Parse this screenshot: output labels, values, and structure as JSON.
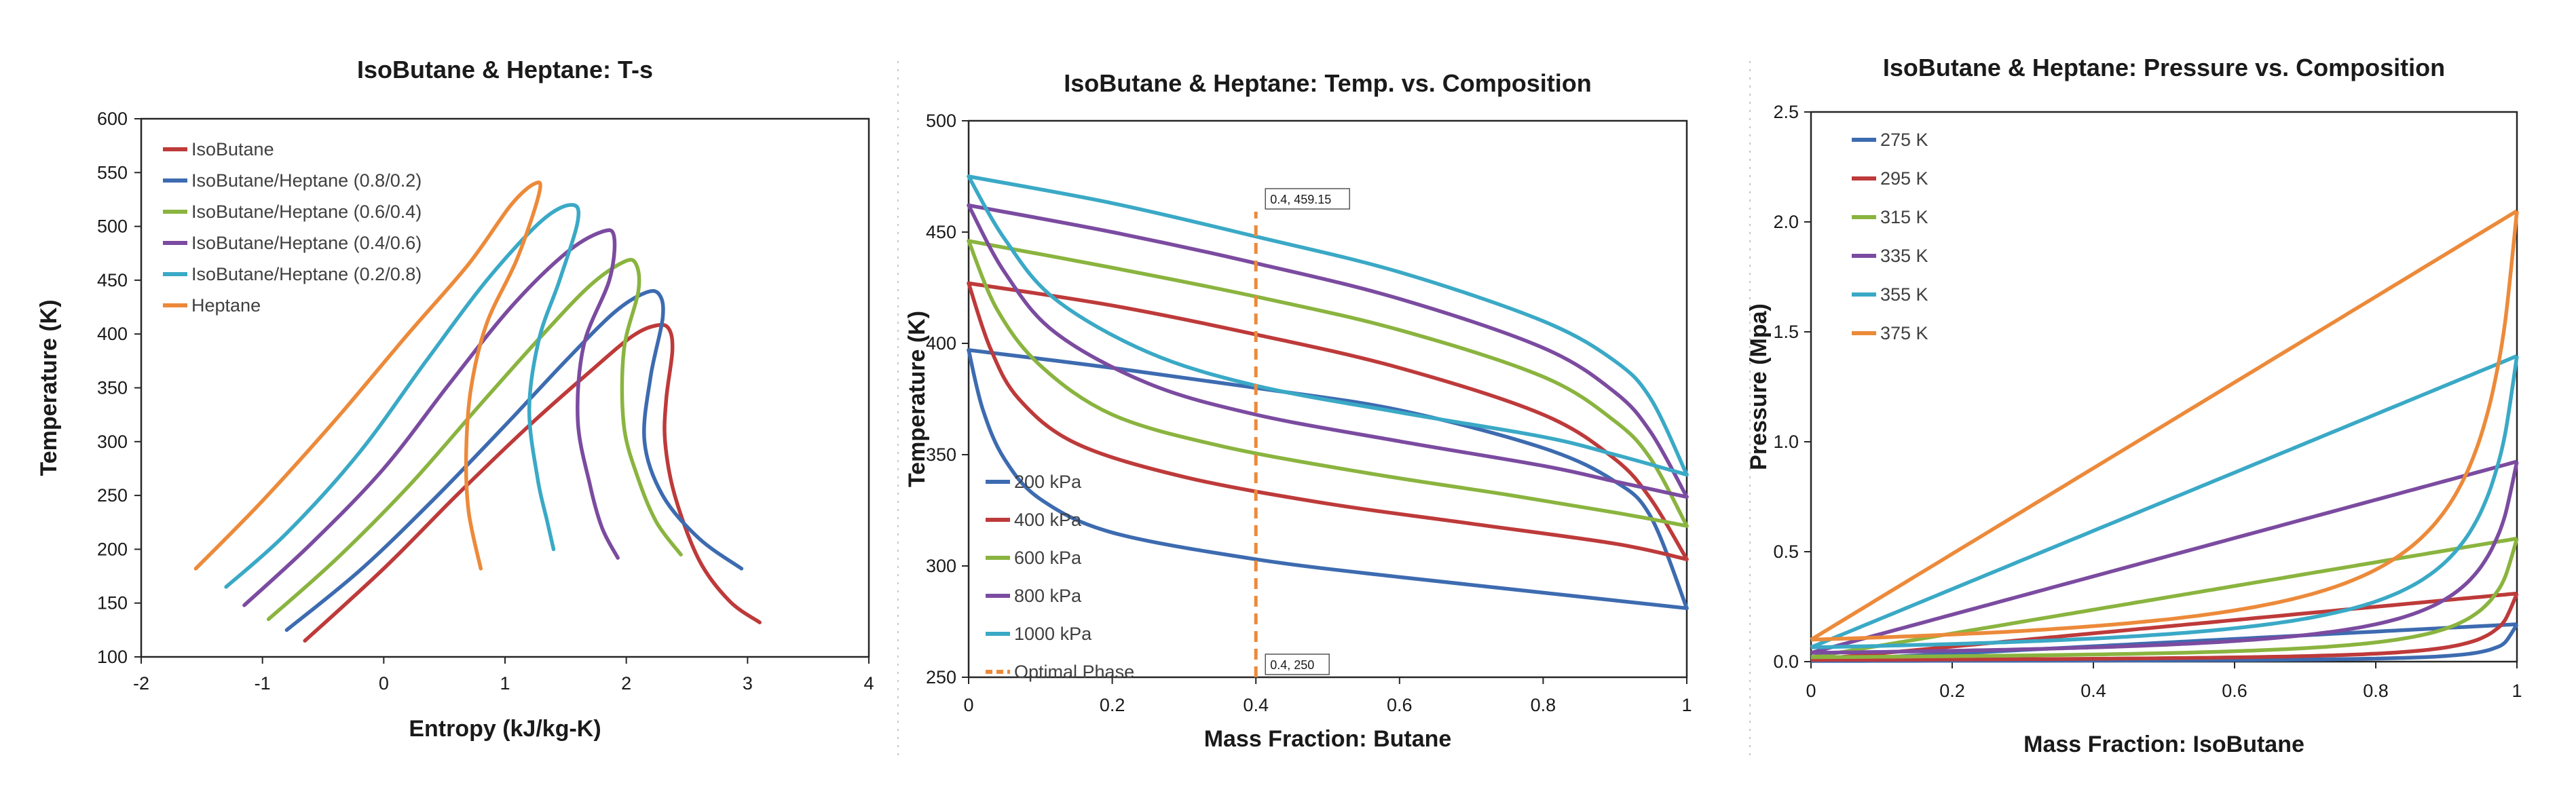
{
  "chart_data": [
    {
      "id": "ts",
      "type": "line",
      "title": "IsoButane & Heptane: T-s",
      "xlabel": "Entropy (kJ/kg-K)",
      "ylabel": "Temperature (K)",
      "xlim": [
        -2,
        4
      ],
      "ylim": [
        100,
        600
      ],
      "xticks": [
        -2,
        -1,
        0,
        1,
        2,
        3,
        4
      ],
      "yticks": [
        100,
        150,
        200,
        250,
        300,
        350,
        400,
        450,
        500,
        550,
        600
      ],
      "legend_position": "top-left",
      "series": [
        {
          "name": "IsoButane",
          "color": "#be3a3a",
          "points": [
            [
              -0.65,
              115
            ],
            [
              0.0,
              182
            ],
            [
              0.6,
              250
            ],
            [
              1.2,
              315
            ],
            [
              1.7,
              365
            ],
            [
              2.05,
              398
            ],
            [
              2.25,
              408
            ],
            [
              2.35,
              405
            ],
            [
              2.38,
              385
            ],
            [
              2.33,
              340
            ],
            [
              2.32,
              300
            ],
            [
              2.4,
              250
            ],
            [
              2.6,
              190
            ],
            [
              2.85,
              152
            ],
            [
              3.1,
              132
            ]
          ]
        },
        {
          "name": "IsoButane/Heptane (0.8/0.2)",
          "color": "#3d6bb0",
          "points": [
            [
              -0.8,
              125
            ],
            [
              -0.2,
              180
            ],
            [
              0.4,
              245
            ],
            [
              1.0,
              315
            ],
            [
              1.5,
              375
            ],
            [
              1.9,
              420
            ],
            [
              2.15,
              438
            ],
            [
              2.27,
              437
            ],
            [
              2.3,
              415
            ],
            [
              2.2,
              360
            ],
            [
              2.15,
              300
            ],
            [
              2.3,
              250
            ],
            [
              2.6,
              210
            ],
            [
              2.95,
              182
            ]
          ]
        },
        {
          "name": "IsoButane/Heptane (0.6/0.4)",
          "color": "#8ab43f",
          "points": [
            [
              -0.95,
              135
            ],
            [
              -0.4,
              190
            ],
            [
              0.2,
              258
            ],
            [
              0.8,
              335
            ],
            [
              1.3,
              398
            ],
            [
              1.7,
              445
            ],
            [
              1.98,
              467
            ],
            [
              2.08,
              465
            ],
            [
              2.1,
              440
            ],
            [
              1.98,
              385
            ],
            [
              1.98,
              315
            ],
            [
              2.1,
              265
            ],
            [
              2.25,
              225
            ],
            [
              2.45,
              195
            ]
          ]
        },
        {
          "name": "IsoButane/Heptane (0.4/0.6)",
          "color": "#7b4ba0",
          "points": [
            [
              -1.15,
              148
            ],
            [
              -0.6,
              205
            ],
            [
              0.0,
              275
            ],
            [
              0.55,
              355
            ],
            [
              1.05,
              425
            ],
            [
              1.5,
              475
            ],
            [
              1.8,
              495
            ],
            [
              1.9,
              490
            ],
            [
              1.86,
              450
            ],
            [
              1.65,
              390
            ],
            [
              1.6,
              320
            ],
            [
              1.7,
              260
            ],
            [
              1.8,
              220
            ],
            [
              1.93,
              192
            ]
          ]
        },
        {
          "name": "IsoButane/Heptane (0.2/0.8)",
          "color": "#3aa9c6",
          "points": [
            [
              -1.3,
              165
            ],
            [
              -0.8,
              215
            ],
            [
              -0.2,
              290
            ],
            [
              0.35,
              375
            ],
            [
              0.85,
              450
            ],
            [
              1.3,
              505
            ],
            [
              1.55,
              520
            ],
            [
              1.6,
              505
            ],
            [
              1.45,
              450
            ],
            [
              1.28,
              395
            ],
            [
              1.2,
              330
            ],
            [
              1.27,
              265
            ],
            [
              1.35,
              225
            ],
            [
              1.4,
              200
            ]
          ]
        },
        {
          "name": "Heptane",
          "color": "#ec8a3a",
          "points": [
            [
              -1.55,
              182
            ],
            [
              -1.0,
              245
            ],
            [
              -0.4,
              320
            ],
            [
              0.2,
              400
            ],
            [
              0.7,
              465
            ],
            [
              1.05,
              520
            ],
            [
              1.25,
              540
            ],
            [
              1.28,
              530
            ],
            [
              1.1,
              470
            ],
            [
              0.85,
              410
            ],
            [
              0.72,
              350
            ],
            [
              0.68,
              290
            ],
            [
              0.7,
              235
            ],
            [
              0.8,
              182
            ]
          ]
        }
      ]
    },
    {
      "id": "tx",
      "type": "line",
      "title": "IsoButane & Heptane: Temp. vs. Composition",
      "xlabel": "Mass Fraction: Butane",
      "ylabel": "Temperature (K)",
      "xlim": [
        0,
        1
      ],
      "ylim": [
        250,
        500
      ],
      "xticks": [
        0,
        0.2,
        0.4,
        0.6,
        0.8,
        1
      ],
      "xtick_labels": [
        "0",
        "0.2",
        "0.4",
        "0.6",
        "0.8",
        "1"
      ],
      "yticks": [
        250,
        300,
        350,
        400,
        450,
        500
      ],
      "legend_position": "bottom-left",
      "series": [
        {
          "name": "200 kPa",
          "color": "#3d6bb0",
          "dew": [
            [
              0,
              397
            ],
            [
              0.2,
              389
            ],
            [
              0.4,
              380
            ],
            [
              0.6,
              370
            ],
            [
              0.8,
              353
            ],
            [
              0.9,
              338
            ],
            [
              0.95,
              322
            ],
            [
              1,
              281
            ]
          ],
          "bubble": [
            [
              0,
              397
            ],
            [
              0.02,
              370
            ],
            [
              0.05,
              348
            ],
            [
              0.1,
              330
            ],
            [
              0.2,
              315
            ],
            [
              0.4,
              303
            ],
            [
              0.6,
              295
            ],
            [
              0.8,
              288
            ],
            [
              1,
              281
            ]
          ]
        },
        {
          "name": "400 kPa",
          "color": "#be3a3a",
          "dew": [
            [
              0,
              427
            ],
            [
              0.2,
              417
            ],
            [
              0.4,
              404
            ],
            [
              0.6,
              389
            ],
            [
              0.8,
              368
            ],
            [
              0.9,
              348
            ],
            [
              0.95,
              330
            ],
            [
              1,
              303
            ]
          ],
          "bubble": [
            [
              0,
              427
            ],
            [
              0.03,
              398
            ],
            [
              0.07,
              375
            ],
            [
              0.15,
              355
            ],
            [
              0.3,
              340
            ],
            [
              0.5,
              328
            ],
            [
              0.7,
              319
            ],
            [
              0.9,
              310
            ],
            [
              1,
              303
            ]
          ]
        },
        {
          "name": "600 kPa",
          "color": "#8ab43f",
          "dew": [
            [
              0,
              446
            ],
            [
              0.2,
              434
            ],
            [
              0.4,
              421
            ],
            [
              0.6,
              406
            ],
            [
              0.8,
              385
            ],
            [
              0.9,
              365
            ],
            [
              0.95,
              348
            ],
            [
              1,
              318
            ]
          ],
          "bubble": [
            [
              0,
              446
            ],
            [
              0.04,
              415
            ],
            [
              0.1,
              390
            ],
            [
              0.2,
              368
            ],
            [
              0.35,
              354
            ],
            [
              0.55,
              342
            ],
            [
              0.75,
              332
            ],
            [
              0.9,
              324
            ],
            [
              1,
              318
            ]
          ]
        },
        {
          "name": "800 kPa",
          "color": "#7b4ba0",
          "dew": [
            [
              0,
              462
            ],
            [
              0.2,
              450
            ],
            [
              0.4,
              436
            ],
            [
              0.6,
              420
            ],
            [
              0.8,
              398
            ],
            [
              0.9,
              378
            ],
            [
              0.95,
              360
            ],
            [
              1,
              331
            ]
          ],
          "bubble": [
            [
              0,
              462
            ],
            [
              0.05,
              432
            ],
            [
              0.12,
              405
            ],
            [
              0.25,
              382
            ],
            [
              0.4,
              368
            ],
            [
              0.6,
              356
            ],
            [
              0.8,
              345
            ],
            [
              0.9,
              338
            ],
            [
              1,
              331
            ]
          ]
        },
        {
          "name": "1000 kPa",
          "color": "#3aa9c6",
          "dew": [
            [
              0,
              475
            ],
            [
              0.2,
              463
            ],
            [
              0.4,
              448
            ],
            [
              0.6,
              432
            ],
            [
              0.8,
              410
            ],
            [
              0.9,
              392
            ],
            [
              0.95,
              375
            ],
            [
              1,
              341
            ]
          ],
          "bubble": [
            [
              0,
              475
            ],
            [
              0.05,
              447
            ],
            [
              0.12,
              420
            ],
            [
              0.25,
              396
            ],
            [
              0.4,
              381
            ],
            [
              0.6,
              369
            ],
            [
              0.8,
              358
            ],
            [
              0.9,
              350
            ],
            [
              1,
              341
            ]
          ]
        },
        {
          "name": "Optimal Phase",
          "color": "#ec8a3a",
          "dashed": true,
          "points": [
            [
              0.4,
              250
            ],
            [
              0.4,
              459.15
            ]
          ]
        }
      ],
      "annotations": [
        {
          "text": "0.4, 459.15",
          "x": 0.4,
          "y": 459.15
        },
        {
          "text": "0.4, 250",
          "x": 0.4,
          "y": 250
        }
      ]
    },
    {
      "id": "px",
      "type": "line",
      "title": "IsoButane & Heptane: Pressure vs. Composition",
      "xlabel": "Mass Fraction: IsoButane",
      "ylabel": "Pressure (Mpa)",
      "xlim": [
        0,
        1
      ],
      "ylim": [
        0,
        2.5
      ],
      "xticks": [
        0,
        0.2,
        0.4,
        0.6,
        0.8,
        1
      ],
      "xtick_labels": [
        "0",
        "0.2",
        "0.4",
        "0.6",
        "0.8",
        "1"
      ],
      "yticks": [
        0,
        0.5,
        1,
        1.5,
        2,
        2.5
      ],
      "ytick_labels": [
        "0.0",
        "0.5",
        "1.0",
        "1.5",
        "2.0",
        "2.5"
      ],
      "legend_position": "top-left",
      "series": [
        {
          "name": "275 K",
          "color": "#3d6bb0",
          "p0": 0.003,
          "p1": 0.17,
          "k": 0.006
        },
        {
          "name": "295 K",
          "color": "#be3a3a",
          "p0": 0.008,
          "p1": 0.31,
          "k": 0.01
        },
        {
          "name": "315 K",
          "color": "#8ab43f",
          "p0": 0.02,
          "p1": 0.56,
          "k": 0.016
        },
        {
          "name": "335 K",
          "color": "#7b4ba0",
          "p0": 0.04,
          "p1": 0.91,
          "k": 0.025
        },
        {
          "name": "355 K",
          "color": "#3aa9c6",
          "p0": 0.065,
          "p1": 1.39,
          "k": 0.04
        },
        {
          "name": "375 K",
          "color": "#ec8a3a",
          "p0": 0.1,
          "p1": 2.05,
          "k": 0.07
        }
      ]
    }
  ]
}
